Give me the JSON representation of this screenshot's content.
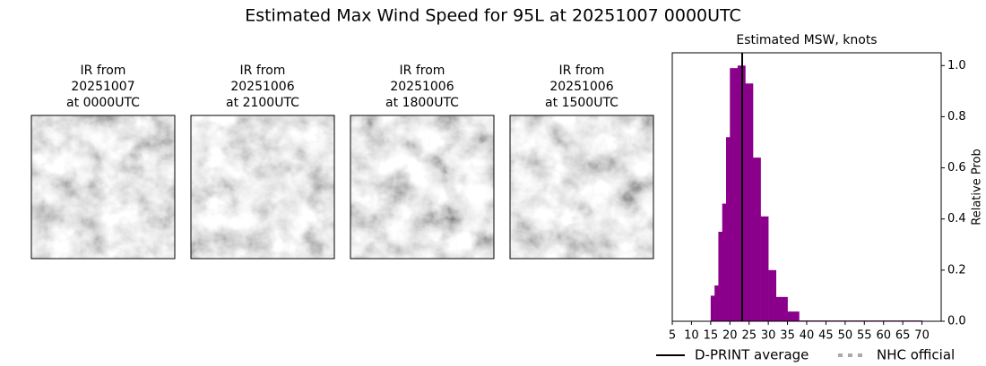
{
  "title": "Estimated Max Wind Speed for 95L at 20251007 0000UTC",
  "panels": [
    {
      "lines": [
        "IR from",
        "20251007",
        "at 0000UTC"
      ]
    },
    {
      "lines": [
        "IR from",
        "20251006",
        "at 2100UTC"
      ]
    },
    {
      "lines": [
        "IR from",
        "20251006",
        "at 1800UTC"
      ]
    },
    {
      "lines": [
        "IR from",
        "20251006",
        "at 1500UTC"
      ]
    }
  ],
  "chart_data": {
    "type": "histogram",
    "title": "Estimated MSW, knots",
    "ylabel": "Relative Prob",
    "color": "#8b008b",
    "bins": [
      15,
      16,
      17,
      18,
      19,
      20,
      21,
      22,
      23,
      24,
      25,
      26,
      27,
      28,
      29,
      30,
      31,
      32,
      33,
      34,
      35,
      36,
      37,
      38,
      39,
      40,
      41,
      42,
      43,
      44,
      45,
      46,
      47,
      48,
      49,
      50,
      51,
      52,
      53,
      54,
      55,
      56,
      57,
      58,
      59,
      60,
      61,
      62,
      63,
      64,
      65,
      66,
      67,
      68,
      69,
      70
    ],
    "values": [
      0.1,
      0.14,
      0.35,
      0.46,
      0.72,
      0.99,
      0.99,
      1.0,
      1.0,
      0.93,
      0.93,
      0.64,
      0.64,
      0.41,
      0.41,
      0.2,
      0.2,
      0.095,
      0.095,
      0.095,
      0.038,
      0.038,
      0.038,
      0.003,
      0.003,
      0.003,
      0.003,
      0.003,
      0.003,
      0.003,
      0.003,
      0.003,
      0.003,
      0.003,
      0.003,
      0.003,
      0.003,
      0.003,
      0.003,
      0.003,
      0.003,
      0.003,
      0.003,
      0.003,
      0.003,
      0.003,
      0.003,
      0.003,
      0.003,
      0.003,
      0.003,
      0.003,
      0.003,
      0.003,
      0.003
    ],
    "average": 23.2,
    "xlim": [
      5,
      75
    ],
    "ylim": [
      0,
      1.05
    ],
    "xticks": [
      5,
      10,
      15,
      20,
      25,
      30,
      35,
      40,
      45,
      50,
      55,
      60,
      65,
      70
    ],
    "yticks": [
      {
        "value": 0,
        "label": "0.0"
      },
      0.2,
      0.4,
      0.6,
      0.8,
      {
        "value": 1,
        "label": "1.0"
      }
    ],
    "legend": [
      {
        "name": "D-PRINT average",
        "color": "#000000",
        "dash": "solid"
      },
      {
        "name": "NHC official",
        "color": "#aaaaaa",
        "dash": "dotted"
      }
    ]
  }
}
